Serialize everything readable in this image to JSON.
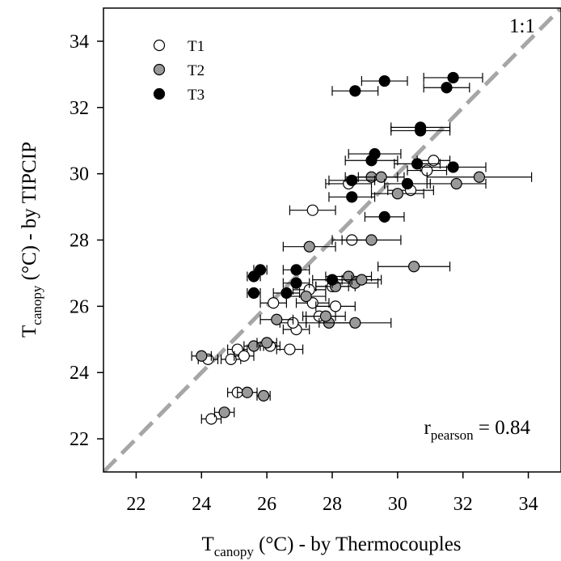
{
  "chart_data": {
    "type": "scatter",
    "title": "",
    "xlabel": {
      "main": "T",
      "sub": "canopy",
      "rest": " (°C) - by Thermocouples"
    },
    "ylabel": {
      "main": "T",
      "sub": "canopy",
      "rest": " (°C) - by TIPCIP"
    },
    "xlim": [
      21,
      35
    ],
    "ylim": [
      21,
      35
    ],
    "xticks": [
      "22",
      "24",
      "26",
      "28",
      "30",
      "32",
      "34"
    ],
    "yticks": [
      "22",
      "24",
      "26",
      "28",
      "30",
      "32",
      "34"
    ],
    "grid": false,
    "legend_position": "top-left",
    "reference_line": {
      "label": "1:1",
      "from": [
        21,
        21
      ],
      "to": [
        35,
        35
      ],
      "color": "#a6a6a6",
      "style": "dashed"
    },
    "annotation": {
      "main": "r",
      "sub": "pearson",
      "rest": " = 0.84"
    },
    "series": [
      {
        "name": "T1",
        "fill": "#ffffff",
        "points": [
          {
            "x": 24.3,
            "y": 22.6,
            "xerr": 0.3
          },
          {
            "x": 25.1,
            "y": 23.4,
            "xerr": 0.3
          },
          {
            "x": 24.2,
            "y": 24.4,
            "xerr": 0.3
          },
          {
            "x": 24.9,
            "y": 24.4,
            "xerr": 0.3
          },
          {
            "x": 25.1,
            "y": 24.7,
            "xerr": 0.3
          },
          {
            "x": 25.3,
            "y": 24.5,
            "xerr": 0.3
          },
          {
            "x": 26.1,
            "y": 24.8,
            "xerr": 0.3
          },
          {
            "x": 26.7,
            "y": 24.7,
            "xerr": 0.4
          },
          {
            "x": 26.9,
            "y": 25.3,
            "xerr": 0.4
          },
          {
            "x": 26.8,
            "y": 25.5,
            "xerr": 0.4
          },
          {
            "x": 27.6,
            "y": 25.7,
            "xerr": 0.5
          },
          {
            "x": 27.4,
            "y": 26.1,
            "xerr": 0.5
          },
          {
            "x": 28.1,
            "y": 26.0,
            "xerr": 0.6
          },
          {
            "x": 26.2,
            "y": 26.1,
            "xerr": 0.4
          },
          {
            "x": 27.3,
            "y": 26.5,
            "xerr": 0.5
          },
          {
            "x": 28.0,
            "y": 26.6,
            "xerr": 0.5
          },
          {
            "x": 28.6,
            "y": 28.0,
            "xerr": 0.6
          },
          {
            "x": 27.4,
            "y": 28.9,
            "xerr": 0.7
          },
          {
            "x": 28.5,
            "y": 29.7,
            "xerr": 0.7
          },
          {
            "x": 30.4,
            "y": 29.5,
            "xerr": 0.7
          },
          {
            "x": 30.9,
            "y": 30.1,
            "xerr": 0.6
          },
          {
            "x": 31.1,
            "y": 30.4,
            "xerr": 0.5
          }
        ]
      },
      {
        "name": "T2",
        "fill": "#999999",
        "points": [
          {
            "x": 24.7,
            "y": 22.8,
            "xerr": 0.3
          },
          {
            "x": 25.4,
            "y": 23.4,
            "xerr": 0.3
          },
          {
            "x": 25.9,
            "y": 23.3,
            "xerr": 0.2
          },
          {
            "x": 24.0,
            "y": 24.5,
            "xerr": 0.3
          },
          {
            "x": 25.6,
            "y": 24.8,
            "xerr": 0.3
          },
          {
            "x": 26.0,
            "y": 24.9,
            "xerr": 0.3
          },
          {
            "x": 26.3,
            "y": 25.6,
            "xerr": 0.5
          },
          {
            "x": 27.9,
            "y": 25.5,
            "xerr": 0.7
          },
          {
            "x": 28.7,
            "y": 25.5,
            "xerr": 1.1
          },
          {
            "x": 27.8,
            "y": 25.7,
            "xerr": 0.6
          },
          {
            "x": 27.2,
            "y": 26.3,
            "xerr": 0.6
          },
          {
            "x": 28.1,
            "y": 26.6,
            "xerr": 0.6
          },
          {
            "x": 28.5,
            "y": 26.9,
            "xerr": 0.7
          },
          {
            "x": 28.7,
            "y": 26.7,
            "xerr": 0.7
          },
          {
            "x": 28.9,
            "y": 26.8,
            "xerr": 0.6
          },
          {
            "x": 30.5,
            "y": 27.2,
            "xerr": 1.1
          },
          {
            "x": 27.3,
            "y": 27.8,
            "xerr": 0.8
          },
          {
            "x": 29.2,
            "y": 28.0,
            "xerr": 0.9
          },
          {
            "x": 30.0,
            "y": 29.4,
            "xerr": 0.8
          },
          {
            "x": 29.2,
            "y": 29.9,
            "xerr": 0.8
          },
          {
            "x": 29.5,
            "y": 29.9,
            "xerr": 0.7
          },
          {
            "x": 31.8,
            "y": 29.7,
            "xerr": 0.9
          },
          {
            "x": 32.5,
            "y": 29.9,
            "xerr": 1.6
          }
        ]
      },
      {
        "name": "T3",
        "fill": "#000000",
        "points": [
          {
            "x": 25.6,
            "y": 26.4,
            "xerr": 0.2
          },
          {
            "x": 25.6,
            "y": 26.9,
            "xerr": 0.2
          },
          {
            "x": 25.8,
            "y": 27.1,
            "xerr": 0.2
          },
          {
            "x": 26.6,
            "y": 26.4,
            "xerr": 0.4
          },
          {
            "x": 26.9,
            "y": 26.7,
            "xerr": 0.4
          },
          {
            "x": 26.9,
            "y": 27.1,
            "xerr": 0.4
          },
          {
            "x": 28.0,
            "y": 26.8,
            "xerr": 0.6
          },
          {
            "x": 29.6,
            "y": 28.7,
            "xerr": 0.6
          },
          {
            "x": 28.6,
            "y": 29.3,
            "xerr": 0.7
          },
          {
            "x": 28.6,
            "y": 29.8,
            "xerr": 0.7
          },
          {
            "x": 29.2,
            "y": 30.4,
            "xerr": 0.8
          },
          {
            "x": 29.3,
            "y": 30.6,
            "xerr": 0.8
          },
          {
            "x": 30.3,
            "y": 29.7,
            "xerr": 0.7
          },
          {
            "x": 30.6,
            "y": 30.3,
            "xerr": 0.7
          },
          {
            "x": 31.7,
            "y": 30.2,
            "xerr": 1.0
          },
          {
            "x": 30.7,
            "y": 31.3,
            "xerr": 0.9
          },
          {
            "x": 30.7,
            "y": 31.4,
            "xerr": 0.9
          },
          {
            "x": 28.7,
            "y": 32.5,
            "xerr": 0.7
          },
          {
            "x": 29.6,
            "y": 32.8,
            "xerr": 0.7
          },
          {
            "x": 31.5,
            "y": 32.6,
            "xerr": 0.7
          },
          {
            "x": 31.7,
            "y": 32.9,
            "xerr": 0.9
          }
        ]
      }
    ]
  }
}
